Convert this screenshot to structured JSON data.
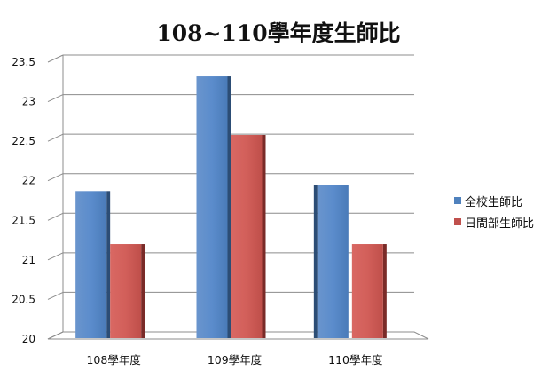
{
  "chart_data": {
    "type": "bar",
    "title": "108~110學年度生師比",
    "categories": [
      "108學年度",
      "109學年度",
      "110學年度"
    ],
    "series": [
      {
        "name": "全校生師比",
        "values": [
          21.87,
          23.32,
          21.95
        ],
        "color": "#4f81bd"
      },
      {
        "name": "日間部生師比",
        "values": [
          21.2,
          22.58,
          21.2
        ],
        "color": "#c0504d"
      }
    ],
    "ylim": [
      20,
      23.5
    ],
    "yticks": [
      "20",
      "20.5",
      "21",
      "21.5",
      "22",
      "22.5",
      "23",
      "23.5"
    ],
    "grid": true,
    "legend_position": "right"
  }
}
